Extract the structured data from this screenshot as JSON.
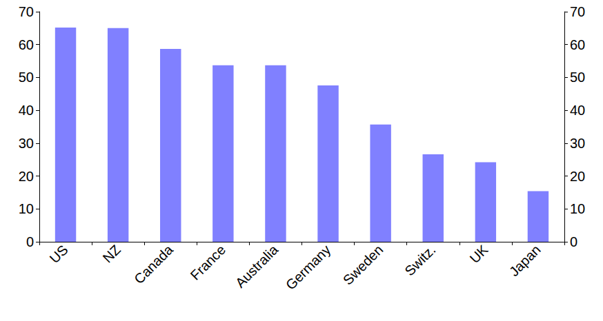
{
  "chart_data": {
    "type": "bar",
    "categories": [
      "US",
      "NZ",
      "Canada",
      "France",
      "Australia",
      "Germany",
      "Sweden",
      "Switz.",
      "UK",
      "Japan"
    ],
    "values": [
      65.2,
      65.0,
      58.7,
      53.7,
      53.7,
      47.6,
      35.7,
      26.6,
      24.2,
      15.4
    ],
    "color": "#8080ff",
    "ylim": [
      0,
      70
    ],
    "yticks": [
      0,
      10,
      20,
      30,
      40,
      50,
      60,
      70
    ],
    "y2lim": [
      0,
      70
    ],
    "y2ticks": [
      0,
      10,
      20,
      30,
      40,
      50,
      60,
      70
    ],
    "grid": false
  }
}
